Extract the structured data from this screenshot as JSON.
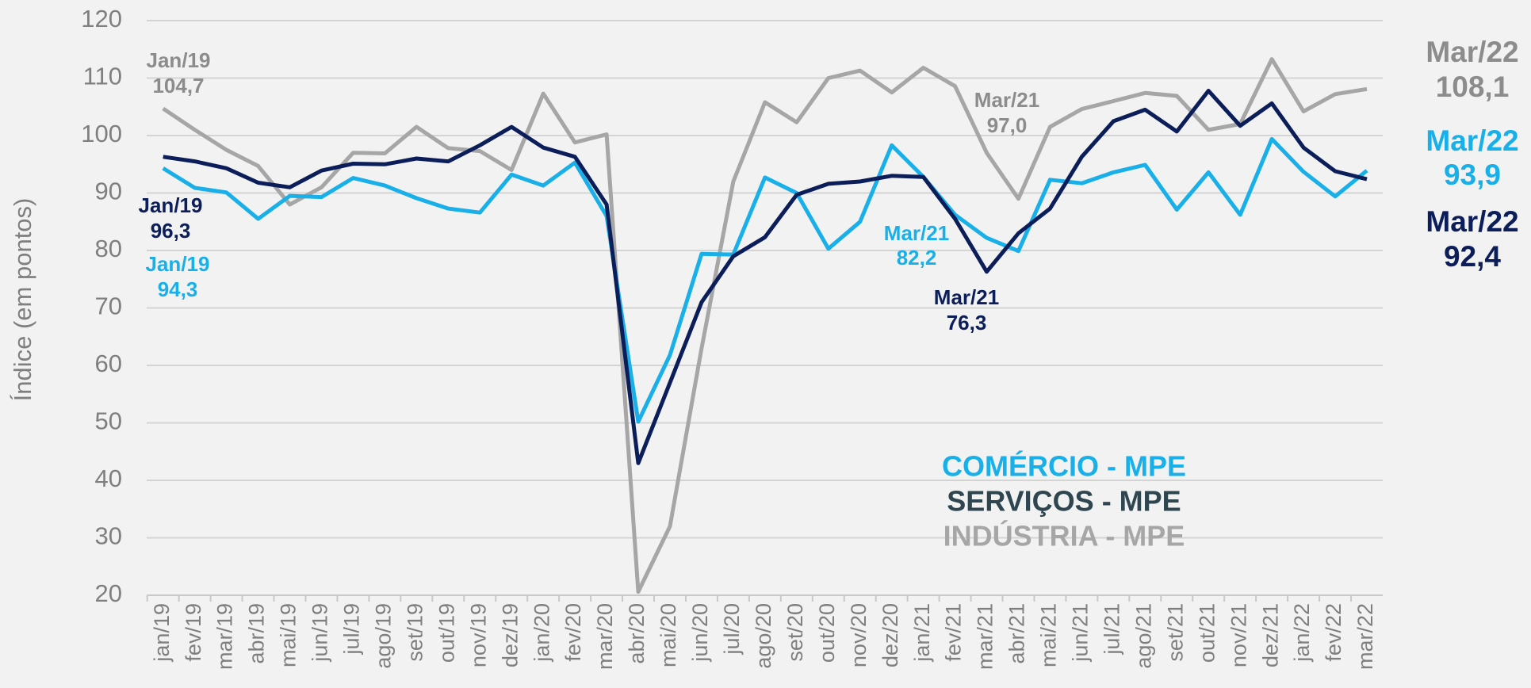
{
  "chart_data": {
    "type": "line",
    "y_label": "Índice (em pontos)",
    "categories": [
      "jan/19",
      "fev/19",
      "mar/19",
      "abr/19",
      "mai/19",
      "jun/19",
      "jul/19",
      "ago/19",
      "set/19",
      "out/19",
      "nov/19",
      "dez/19",
      "jan/20",
      "fev/20",
      "mar/20",
      "abr/20",
      "mai/20",
      "jun/20",
      "jul/20",
      "ago/20",
      "set/20",
      "out/20",
      "nov/20",
      "dez/20",
      "jan/21",
      "fev/21",
      "mar/21",
      "abr/21",
      "mai/21",
      "jun/21",
      "jul/21",
      "ago/21",
      "set/21",
      "out/21",
      "nov/21",
      "dez/21",
      "jan/22",
      "fev/22",
      "mar/22"
    ],
    "ylim": [
      20,
      120
    ],
    "yticks": [
      20,
      30,
      40,
      50,
      60,
      70,
      80,
      90,
      100,
      110,
      120
    ],
    "grid": true,
    "series": [
      {
        "name": "COMÉRCIO - MPE",
        "color": "#19afe8",
        "legend_color": "#19afe8",
        "values": [
          94.3,
          90.9,
          90.1,
          85.5,
          89.5,
          89.3,
          92.6,
          91.3,
          89.1,
          87.3,
          86.6,
          93.2,
          91.3,
          95.3,
          86,
          50.2,
          61.8,
          79.4,
          79.3,
          92.7,
          90,
          80.3,
          85,
          98.3,
          92.8,
          86.2,
          82.2,
          79.9,
          92.3,
          91.7,
          93.6,
          94.9,
          87.1,
          93.6,
          86.2,
          99.4,
          93.7,
          89.4,
          93.9
        ],
        "annotations": [
          {
            "label": "Jan/19",
            "value_label": "94,3"
          },
          {
            "label": "Mar/21",
            "value_label": "82,2"
          },
          {
            "label": "Mar/22",
            "value_label": "93,9"
          }
        ]
      },
      {
        "name": "SERVIÇOS - MPE",
        "color": "#0c1e5a",
        "legend_color": "#2f4650",
        "values": [
          96.3,
          95.5,
          94.3,
          91.8,
          91,
          93.9,
          95.1,
          95,
          96,
          95.5,
          98.3,
          101.5,
          97.9,
          96.3,
          88,
          43,
          57,
          71,
          79,
          82.3,
          89.7,
          91.6,
          92,
          93,
          92.8,
          85.5,
          76.3,
          83,
          87.3,
          96.3,
          102.5,
          104.5,
          100.7,
          107.8,
          101.7,
          105.6,
          97.9,
          93.8,
          92.4
        ],
        "annotations": [
          {
            "label": "Jan/19",
            "value_label": "96,3"
          },
          {
            "label": "Mar/21",
            "value_label": "76,3"
          },
          {
            "label": "Mar/22",
            "value_label": "92,4"
          }
        ]
      },
      {
        "name": "INDÚSTRIA - MPE",
        "color": "#a6a6a6",
        "legend_color": "#a6a6a6",
        "values": [
          104.7,
          101,
          97.5,
          94.7,
          88,
          91,
          97,
          96.9,
          101.5,
          97.8,
          97.3,
          94,
          107.3,
          98.8,
          100.2,
          20.6,
          32,
          63,
          92,
          105.8,
          102.3,
          110,
          111.3,
          107.5,
          111.8,
          108.6,
          97,
          89,
          101.5,
          104.6,
          106,
          107.4,
          106.9,
          101,
          102,
          113.3,
          104.2,
          107.2,
          108.1
        ],
        "annotations": [
          {
            "label": "Jan/19",
            "value_label": "104,7"
          },
          {
            "label": "Mar/21",
            "value_label": "97,0"
          },
          {
            "label": "Mar/22",
            "value_label": "108,1"
          }
        ]
      }
    ]
  }
}
